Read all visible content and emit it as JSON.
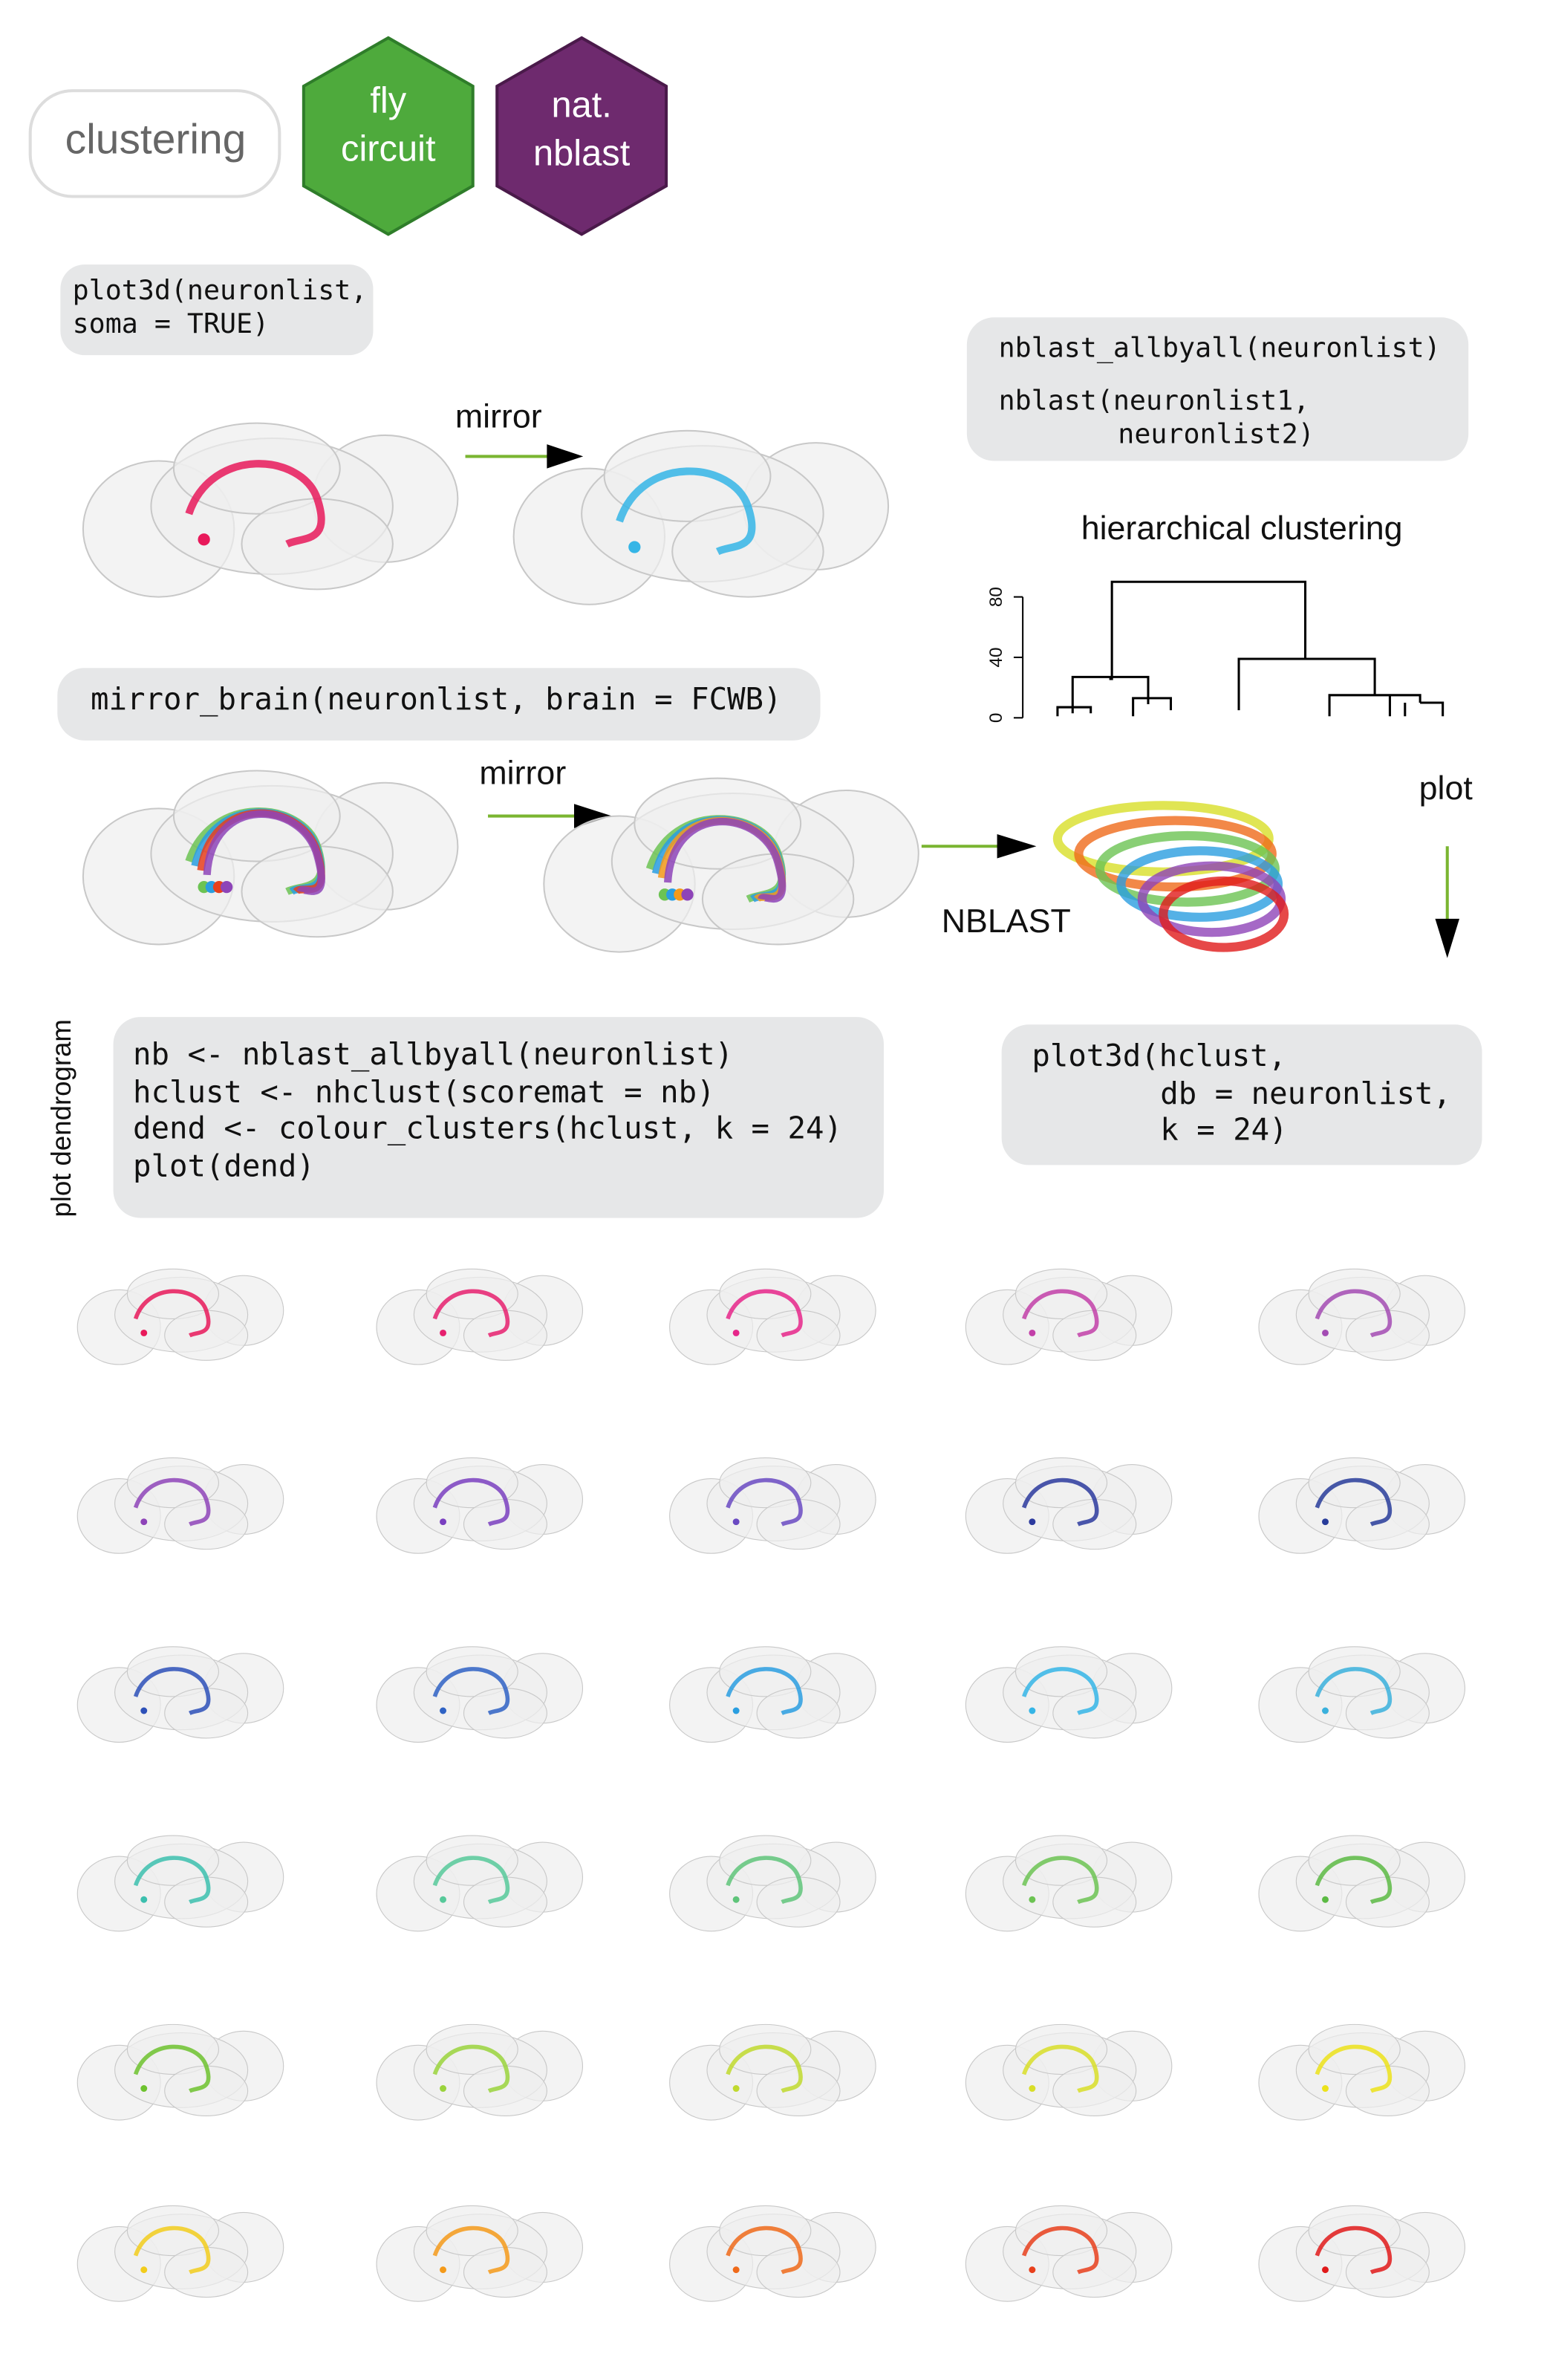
{
  "badges": {
    "clustering": "clustering",
    "flycircuit": [
      "fly",
      "circuit"
    ],
    "natnblast": [
      "nat.",
      "nblast"
    ]
  },
  "code": {
    "plot3d_soma": [
      "plot3d(neuronlist,",
      "soma = TRUE)"
    ],
    "nblast": [
      "nblast_allbyall(neuronlist)",
      "nblast(neuronlist1,",
      "neuronlist2)"
    ],
    "mirror_brain": "mirror_brain(neuronlist, brain = FCWB)",
    "dendrogram": [
      "nb <- nblast_allbyall(neuronlist)",
      "hclust <- nhclust(scoremat = nb)",
      "dend <- colour_clusters(hclust, k = 24)",
      "plot(dend)"
    ],
    "plot3d_hclust": [
      "plot3d(hclust,",
      "db = neuronlist,",
      "k = 24)"
    ]
  },
  "labels": {
    "mirror_top": "mirror",
    "mirror_middle": "mirror",
    "nblast": "NBLAST",
    "plot": "plot",
    "plot_dendrogram": "plot dendrogram"
  },
  "dendrogram": {
    "title": "hierarchical clustering",
    "ylim": [
      0,
      90
    ],
    "yticks": [
      0,
      40,
      80
    ]
  },
  "cluster_colors": [
    "#e8195a",
    "#e6206e",
    "#e6268a",
    "#c23fa8",
    "#a34bb3",
    "#8e44b8",
    "#7a3fc0",
    "#6a4ac2",
    "#2c3a9e",
    "#283c9a",
    "#2d50b8",
    "#2f62c4",
    "#2a9ee0",
    "#35b5e6",
    "#3ab0dc",
    "#3cbfae",
    "#57c99a",
    "#5fc47a",
    "#6cc353",
    "#5cba44",
    "#6dc22e",
    "#9ad33c",
    "#c0d92e",
    "#d8de28",
    "#ece21a",
    "#f2cc1c",
    "#f49a1a",
    "#ef6a1a",
    "#e8401c",
    "#e01a1a"
  ]
}
